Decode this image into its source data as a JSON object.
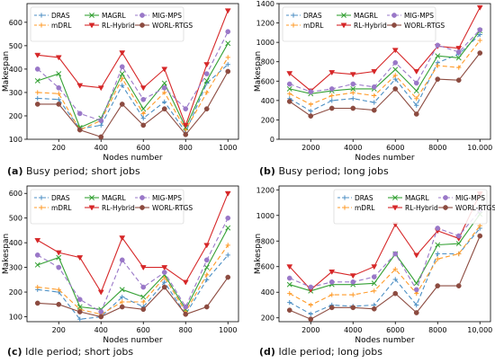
{
  "chart_data": [
    {
      "type": "line",
      "ylabel": "Makespan",
      "xlabel": "Nodes number",
      "x": [
        100,
        200,
        300,
        400,
        500,
        600,
        700,
        800,
        900,
        1000
      ],
      "xticks": [
        "200",
        "400",
        "600",
        "800",
        "1000"
      ],
      "xtick_values": [
        200,
        400,
        600,
        800,
        1000
      ],
      "xlim": [
        50,
        1050
      ],
      "ylim": [
        100,
        680
      ],
      "yticks": [
        100,
        200,
        300,
        400,
        500,
        600
      ],
      "legend": "top-left",
      "caption_label": "(a)",
      "caption_text": "Busy period; short jobs",
      "series": [
        {
          "name": "DRAS",
          "values": [
            275,
            270,
            145,
            160,
            330,
            190,
            260,
            130,
            340,
            420
          ]
        },
        {
          "name": "mDRL",
          "values": [
            300,
            295,
            140,
            180,
            360,
            210,
            300,
            140,
            300,
            450
          ]
        },
        {
          "name": "MAGRL",
          "values": [
            350,
            380,
            150,
            190,
            380,
            230,
            340,
            150,
            350,
            510
          ]
        },
        {
          "name": "RL-Hybrid",
          "values": [
            460,
            450,
            330,
            320,
            470,
            320,
            400,
            160,
            420,
            650
          ]
        },
        {
          "name": "MIG-MPS",
          "values": [
            400,
            320,
            210,
            180,
            410,
            270,
            320,
            230,
            380,
            560
          ]
        },
        {
          "name": "WORL-RTGS",
          "values": [
            250,
            250,
            140,
            110,
            250,
            160,
            230,
            120,
            230,
            390
          ]
        }
      ]
    },
    {
      "type": "line",
      "ylabel": "Makespan",
      "xlabel": "Nodes number",
      "x": [
        1000,
        2000,
        3000,
        4000,
        5000,
        6000,
        7000,
        8000,
        9000,
        10000
      ],
      "xticks": [
        "2000",
        "4000",
        "6000",
        "8000",
        "10.000"
      ],
      "xtick_values": [
        2000,
        4000,
        6000,
        8000,
        10000
      ],
      "xlim": [
        500,
        10500
      ],
      "ylim": [
        0,
        1400
      ],
      "yticks": [
        0,
        200,
        400,
        600,
        800,
        1000,
        1200,
        1400
      ],
      "legend": "top-left",
      "caption_label": "(b)",
      "caption_text": "Busy period; long jobs",
      "series": [
        {
          "name": "DRAS",
          "values": [
            420,
            290,
            400,
            420,
            380,
            620,
            350,
            790,
            880,
            1080
          ]
        },
        {
          "name": "mDRL",
          "values": [
            470,
            360,
            450,
            480,
            450,
            660,
            420,
            760,
            740,
            1020
          ]
        },
        {
          "name": "MAGRL",
          "values": [
            520,
            470,
            500,
            520,
            520,
            720,
            500,
            860,
            840,
            1120
          ]
        },
        {
          "name": "RL-Hybrid",
          "values": [
            680,
            500,
            690,
            670,
            700,
            920,
            700,
            960,
            940,
            1360
          ]
        },
        {
          "name": "MIG-MPS",
          "values": [
            570,
            490,
            520,
            570,
            540,
            790,
            580,
            970,
            900,
            1130
          ]
        },
        {
          "name": "WORL-RTGS",
          "values": [
            390,
            240,
            320,
            320,
            300,
            520,
            260,
            620,
            610,
            890
          ]
        }
      ]
    },
    {
      "type": "line",
      "ylabel": "Makespan",
      "xlabel": "Nodes number",
      "x": [
        100,
        200,
        300,
        400,
        500,
        600,
        700,
        800,
        900,
        1000
      ],
      "xticks": [
        "200",
        "400",
        "600",
        "800",
        "1000"
      ],
      "xtick_values": [
        200,
        400,
        600,
        800,
        1000
      ],
      "xlim": [
        50,
        1050
      ],
      "ylim": [
        80,
        630
      ],
      "yticks": [
        100,
        200,
        300,
        400,
        500,
        600
      ],
      "legend": "top-left",
      "caption_label": "(c)",
      "caption_text": "Idle period; short jobs",
      "series": [
        {
          "name": "DRAS",
          "values": [
            210,
            200,
            90,
            100,
            180,
            140,
            240,
            110,
            250,
            350
          ]
        },
        {
          "name": "mDRL",
          "values": [
            220,
            210,
            130,
            110,
            160,
            160,
            260,
            120,
            270,
            390
          ]
        },
        {
          "name": "MAGRL",
          "values": [
            310,
            340,
            140,
            130,
            210,
            180,
            270,
            130,
            300,
            460
          ]
        },
        {
          "name": "RL-Hybrid",
          "values": [
            410,
            360,
            340,
            200,
            420,
            300,
            300,
            240,
            390,
            600
          ]
        },
        {
          "name": "MIG-MPS",
          "values": [
            350,
            300,
            170,
            120,
            330,
            220,
            280,
            140,
            330,
            500
          ]
        },
        {
          "name": "WORL-RTGS",
          "values": [
            155,
            150,
            120,
            100,
            140,
            130,
            220,
            110,
            140,
            260
          ]
        }
      ]
    },
    {
      "type": "line",
      "ylabel": "Makespan",
      "xlabel": "Nodes number",
      "x": [
        1000,
        2000,
        3000,
        4000,
        5000,
        6000,
        7000,
        8000,
        9000,
        10000
      ],
      "xticks": [
        "2000",
        "4000",
        "6000",
        "8000",
        "10,000"
      ],
      "xtick_values": [
        2000,
        4000,
        6000,
        8000,
        10000
      ],
      "xlim": [
        500,
        10500
      ],
      "ylim": [
        170,
        1230
      ],
      "yticks": [
        200,
        400,
        600,
        800,
        1000,
        1200
      ],
      "legend": "top-right",
      "caption_label": "(d)",
      "caption_text": "Idle period; long jobs",
      "series": [
        {
          "name": "DRAS",
          "values": [
            320,
            230,
            300,
            290,
            300,
            500,
            300,
            700,
            700,
            900
          ]
        },
        {
          "name": "mDRL",
          "values": [
            390,
            300,
            380,
            380,
            410,
            580,
            390,
            660,
            700,
            920
          ]
        },
        {
          "name": "MAGRL",
          "values": [
            460,
            410,
            460,
            460,
            470,
            700,
            470,
            770,
            780,
            1010
          ]
        },
        {
          "name": "RL-Hybrid",
          "values": [
            600,
            420,
            560,
            530,
            600,
            930,
            690,
            880,
            820,
            1170
          ]
        },
        {
          "name": "MIG-MPS",
          "values": [
            510,
            440,
            480,
            480,
            520,
            700,
            420,
            900,
            840,
            1040
          ]
        },
        {
          "name": "WORL-RTGS",
          "values": [
            260,
            190,
            280,
            280,
            270,
            390,
            240,
            450,
            450,
            840
          ]
        }
      ]
    }
  ],
  "styles": {
    "DRAS": {
      "color": "#4c8fc4",
      "dash": "5,3",
      "marker": "plus"
    },
    "mDRL": {
      "color": "#ff9b29",
      "dash": "5,3",
      "marker": "plus"
    },
    "MAGRL": {
      "color": "#35a135",
      "dash": "",
      "marker": "x"
    },
    "RL-Hybrid": {
      "color": "#d62728",
      "dash": "",
      "marker": "triangle-down"
    },
    "MIG-MPS": {
      "color": "#9a78c8",
      "dash": "5,3",
      "marker": "circle"
    },
    "WORL-RTGS": {
      "color": "#8c4b40",
      "dash": "",
      "marker": "circle"
    }
  }
}
